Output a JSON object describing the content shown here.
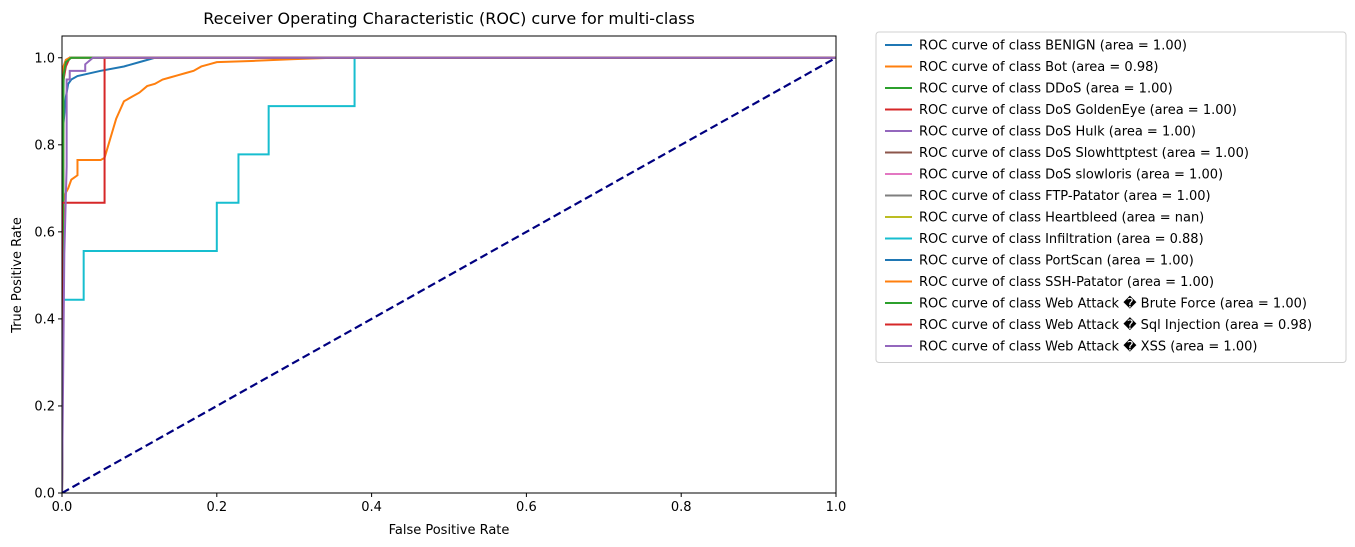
{
  "chart_data": {
    "type": "line",
    "title": "Receiver Operating Characteristic (ROC) curve for multi-class",
    "xlabel": "False Positive Rate",
    "ylabel": "True Positive Rate",
    "xlim": [
      0,
      1
    ],
    "ylim": [
      0,
      1.05
    ],
    "x_ticks": [
      "0.0",
      "0.2",
      "0.4",
      "0.6",
      "0.8",
      "1.0"
    ],
    "y_ticks": [
      "0.0",
      "0.2",
      "0.4",
      "0.6",
      "0.8",
      "1.0"
    ],
    "grid": false,
    "legend_position": "outside-right",
    "series": [
      {
        "name": "ROC curve of class BENIGN (area = 1.00)",
        "color": "#1f77b4",
        "x": [
          0,
          0.002,
          0.005,
          0.008,
          0.012,
          0.02,
          0.03,
          0.05,
          0.08,
          0.1,
          0.12,
          0.2,
          0.4,
          1.0
        ],
        "y": [
          0,
          0.85,
          0.91,
          0.94,
          0.95,
          0.958,
          0.962,
          0.97,
          0.98,
          0.99,
          1.0,
          1.0,
          1.0,
          1.0
        ]
      },
      {
        "name": "ROC curve of class Bot (area = 0.98)",
        "color": "#ff7f0e",
        "x": [
          0,
          0.002,
          0.005,
          0.008,
          0.012,
          0.02,
          0.02,
          0.05,
          0.055,
          0.06,
          0.065,
          0.07,
          0.075,
          0.08,
          0.09,
          0.1,
          0.11,
          0.12,
          0.13,
          0.14,
          0.15,
          0.16,
          0.17,
          0.18,
          0.19,
          0.2,
          0.25,
          0.3,
          0.35,
          1.0
        ],
        "y": [
          0,
          0.67,
          0.69,
          0.7,
          0.72,
          0.73,
          0.765,
          0.765,
          0.77,
          0.8,
          0.83,
          0.86,
          0.88,
          0.9,
          0.91,
          0.92,
          0.935,
          0.94,
          0.95,
          0.955,
          0.96,
          0.965,
          0.97,
          0.98,
          0.985,
          0.99,
          0.993,
          0.997,
          1.0,
          1.0
        ]
      },
      {
        "name": "ROC curve of class DDoS (area = 1.00)",
        "color": "#2ca02c",
        "x": [
          0,
          0.002,
          0.005,
          0.01,
          1.0
        ],
        "y": [
          0,
          0.97,
          0.99,
          1.0,
          1.0
        ]
      },
      {
        "name": "ROC curve of class DoS GoldenEye (area = 1.00)",
        "color": "#d62728",
        "x": [
          0,
          0.002,
          0.005,
          0.01,
          1.0
        ],
        "y": [
          0,
          0.95,
          0.98,
          1.0,
          1.0
        ]
      },
      {
        "name": "ROC curve of class DoS Hulk (area = 1.00)",
        "color": "#9467bd",
        "x": [
          0,
          0.002,
          0.005,
          0.01,
          1.0
        ],
        "y": [
          0,
          0.96,
          0.99,
          1.0,
          1.0
        ]
      },
      {
        "name": "ROC curve of class DoS Slowhttptest (area = 1.00)",
        "color": "#8c564b",
        "x": [
          0,
          0.002,
          0.005,
          0.01,
          1.0
        ],
        "y": [
          0,
          0.97,
          0.99,
          1.0,
          1.0
        ]
      },
      {
        "name": "ROC curve of class DoS slowloris (area = 1.00)",
        "color": "#e377c2",
        "x": [
          0,
          0.002,
          0.005,
          0.01,
          1.0
        ],
        "y": [
          0,
          0.97,
          0.99,
          1.0,
          1.0
        ]
      },
      {
        "name": "ROC curve of class FTP-Patator (area = 1.00)",
        "color": "#7f7f7f",
        "x": [
          0,
          0.002,
          0.005,
          0.01,
          1.0
        ],
        "y": [
          0,
          0.98,
          0.995,
          1.0,
          1.0
        ]
      },
      {
        "name": "ROC curve of class Heartbleed (area = nan)",
        "color": "#bcbd22",
        "x": [],
        "y": []
      },
      {
        "name": "ROC curve of class Infiltration (area = 0.88)",
        "color": "#17becf",
        "x": [
          0,
          0.0,
          0.028,
          0.028,
          0.2,
          0.2,
          0.228,
          0.228,
          0.267,
          0.267,
          0.378,
          0.378,
          1.0
        ],
        "y": [
          0,
          0.444,
          0.444,
          0.556,
          0.556,
          0.667,
          0.667,
          0.778,
          0.778,
          0.889,
          0.889,
          1.0,
          1.0
        ]
      },
      {
        "name": "ROC curve of class PortScan (area = 1.00)",
        "color": "#1f77b4",
        "x": [
          0,
          0.002,
          0.005,
          0.01,
          1.0
        ],
        "y": [
          0,
          0.97,
          0.99,
          1.0,
          1.0
        ]
      },
      {
        "name": "ROC curve of class SSH-Patator (area = 1.00)",
        "color": "#ff7f0e",
        "x": [
          0,
          0.002,
          0.005,
          0.01,
          1.0
        ],
        "y": [
          0,
          0.98,
          0.995,
          1.0,
          1.0
        ]
      },
      {
        "name": "ROC curve of class Web Attack � Brute Force (area = 1.00)",
        "color": "#2ca02c",
        "x": [
          0,
          0.002,
          0.005,
          0.012,
          1.0
        ],
        "y": [
          0,
          0.96,
          0.99,
          1.0,
          1.0
        ]
      },
      {
        "name": "ROC curve of class Web Attack � Sql Injection (area = 0.98)",
        "color": "#d62728",
        "x": [
          0,
          0.0,
          0.055,
          0.055,
          1.0
        ],
        "y": [
          0,
          0.667,
          0.667,
          1.0,
          1.0
        ]
      },
      {
        "name": "ROC curve of class Web Attack � XSS (area = 1.00)",
        "color": "#9467bd",
        "x": [
          0,
          0.003,
          0.006,
          0.006,
          0.01,
          0.01,
          0.03,
          0.03,
          0.04,
          1.0
        ],
        "y": [
          0,
          0.55,
          0.75,
          0.95,
          0.95,
          0.97,
          0.97,
          0.985,
          1.0,
          1.0
        ]
      }
    ],
    "reference_line": {
      "x": [
        0,
        1
      ],
      "y": [
        0,
        1
      ],
      "color": "#000080",
      "style": "dashed"
    }
  }
}
